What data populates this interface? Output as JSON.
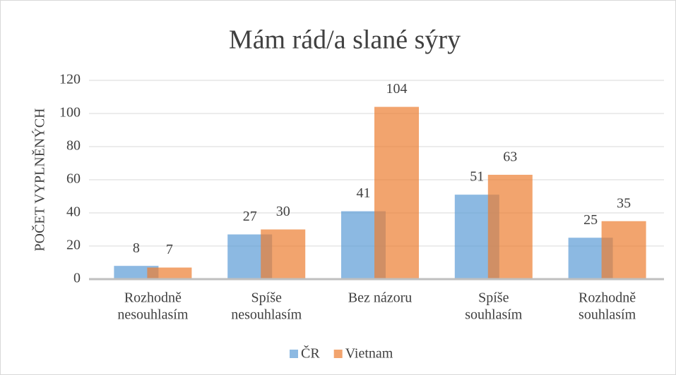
{
  "chart_data": {
    "type": "bar",
    "title": "Mám rád/a slané sýry",
    "y_label": "POČET VYPLNĚNÝCH",
    "categories": [
      [
        "Rozhodně",
        "nesouhlasím"
      ],
      [
        "Spíše",
        "nesouhlasím"
      ],
      [
        "Bez názoru"
      ],
      [
        "Spíše",
        "souhlasím"
      ],
      [
        "Rozhodně",
        "souhlasím"
      ]
    ],
    "series": [
      {
        "name": "ČR",
        "color": "#5b9bd5",
        "values": [
          8,
          27,
          41,
          51,
          25
        ]
      },
      {
        "name": "Vietnam",
        "color": "#ed7d31",
        "values": [
          7,
          30,
          104,
          63,
          35
        ]
      }
    ],
    "ylim": [
      0,
      120
    ],
    "yticks": [
      0,
      20,
      40,
      60,
      80,
      100,
      120
    ],
    "grid": true,
    "legend": "bottom"
  }
}
